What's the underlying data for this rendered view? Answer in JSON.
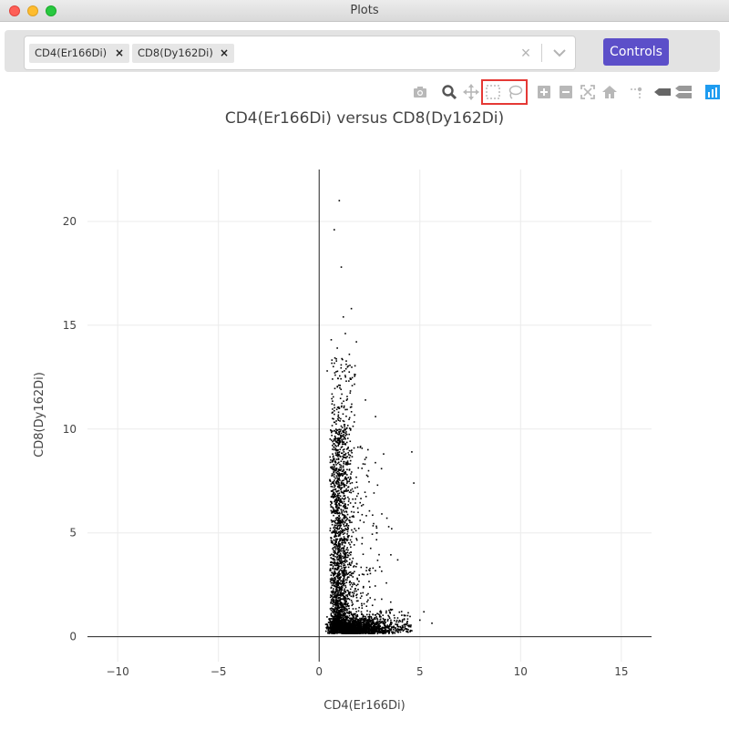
{
  "window": {
    "title": "Plots"
  },
  "selector": {
    "chips": [
      {
        "label": "CD4(Er166Di)",
        "remove": "×"
      },
      {
        "label": "CD8(Dy162Di)",
        "remove": "×"
      }
    ],
    "clear": "×"
  },
  "controls_label": "Controls",
  "modebar": {
    "icons": [
      "camera-icon",
      "zoom-icon",
      "pan-icon",
      "box-select-icon",
      "lasso-select-icon",
      "zoom-in-icon",
      "zoom-out-icon",
      "autoscale-icon",
      "reset-axes-icon",
      "spike-lines-icon",
      "hover-closest-icon",
      "hover-compare-icon",
      "plotly-logo-icon"
    ]
  },
  "chart_data": {
    "type": "scatter",
    "title": "CD4(Er166Di) versus CD8(Dy162Di)",
    "xlabel": "CD4(Er166Di)",
    "ylabel": "CD8(Dy162Di)",
    "xlim": [
      -11.5,
      16.5
    ],
    "ylim": [
      -1.2,
      22.5
    ],
    "xticks": [
      -10,
      -5,
      0,
      5,
      10,
      15
    ],
    "xtick_labels": [
      "−10",
      "−5",
      "0",
      "5",
      "10",
      "15"
    ],
    "yticks": [
      0,
      5,
      10,
      15,
      20
    ],
    "ytick_labels": [
      "0",
      "5",
      "10",
      "15",
      "20"
    ],
    "grid": true,
    "marker_color": "#000000",
    "outliers": [
      {
        "x": 1.0,
        "y": 21.0
      },
      {
        "x": 0.75,
        "y": 19.6
      },
      {
        "x": 1.1,
        "y": 17.8
      },
      {
        "x": 1.6,
        "y": 15.8
      },
      {
        "x": 1.2,
        "y": 15.4
      },
      {
        "x": 1.3,
        "y": 14.6
      },
      {
        "x": 0.6,
        "y": 14.3
      },
      {
        "x": 1.85,
        "y": 14.2
      },
      {
        "x": 0.9,
        "y": 13.9
      },
      {
        "x": 1.5,
        "y": 13.6
      },
      {
        "x": 0.4,
        "y": 12.8
      },
      {
        "x": 0.8,
        "y": 12.6
      },
      {
        "x": 1.55,
        "y": 12.4
      },
      {
        "x": 2.3,
        "y": 11.4
      },
      {
        "x": 2.8,
        "y": 10.6
      },
      {
        "x": 4.6,
        "y": 8.9
      },
      {
        "x": 3.2,
        "y": 8.8
      },
      {
        "x": 4.7,
        "y": 7.4
      },
      {
        "x": 2.9,
        "y": 7.3
      },
      {
        "x": 3.6,
        "y": 5.2
      },
      {
        "x": 3.9,
        "y": 3.7
      },
      {
        "x": 5.2,
        "y": 1.2
      },
      {
        "x": 5.6,
        "y": 0.65
      },
      {
        "x": 5.0,
        "y": 0.8
      }
    ]
  }
}
